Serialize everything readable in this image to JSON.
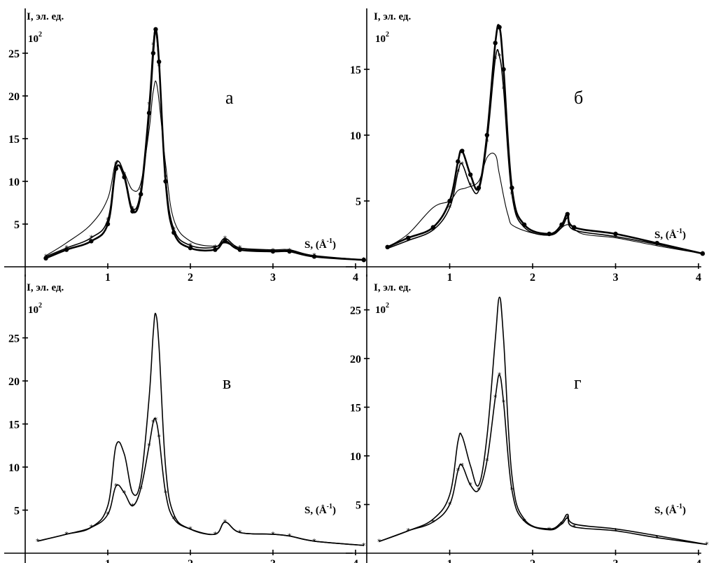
{
  "chart_data": [
    {
      "type": "line",
      "panel_label": "а",
      "ylabel": "I, эл. ед.",
      "y_multiplier": "10",
      "y_multiplier_exp": "2",
      "xlabel_prefix": "S, (Å",
      "xlabel_exp": "-1",
      "xlabel_suffix": ")",
      "xlim": [
        0,
        4.1
      ],
      "ylim": [
        0,
        28
      ],
      "x_ticks": [
        "1",
        "2",
        "3",
        "4"
      ],
      "y_ticks": [
        "5",
        "10",
        "15",
        "20",
        "25"
      ],
      "series": [
        {
          "style": "thick",
          "marker": "diamond",
          "x": [
            0.25,
            0.5,
            0.8,
            1.0,
            1.1,
            1.2,
            1.3,
            1.4,
            1.5,
            1.55,
            1.58,
            1.62,
            1.7,
            1.8,
            2.0,
            2.3,
            2.42,
            2.6,
            3.0,
            3.2,
            3.5,
            4.1
          ],
          "y": [
            1.0,
            2.0,
            3.0,
            5.0,
            11.5,
            10.5,
            6.5,
            8.5,
            18.0,
            25.0,
            27.8,
            24.0,
            10.0,
            4.0,
            2.2,
            2.0,
            3.0,
            2.0,
            1.8,
            1.8,
            1.2,
            0.8
          ]
        },
        {
          "style": "medium",
          "marker": "asterisk",
          "x": [
            0.25,
            0.5,
            0.8,
            1.0,
            1.1,
            1.2,
            1.3,
            1.4,
            1.5,
            1.55,
            1.58,
            1.62,
            1.7,
            1.8,
            2.0,
            2.3,
            2.42,
            2.6,
            3.0,
            3.2,
            3.5,
            4.1
          ],
          "y": [
            1.2,
            2.2,
            3.4,
            5.5,
            12.0,
            10.8,
            6.8,
            9.0,
            19.0,
            26.0,
            27.5,
            23.5,
            10.5,
            4.4,
            2.5,
            2.3,
            3.3,
            2.2,
            1.9,
            1.9,
            1.3,
            0.8
          ]
        },
        {
          "style": "thin",
          "marker": "none",
          "x": [
            0.25,
            0.5,
            0.8,
            1.0,
            1.1,
            1.2,
            1.3,
            1.4,
            1.5,
            1.55,
            1.6,
            1.7,
            1.8,
            2.0,
            2.3,
            2.42,
            2.6,
            3.0,
            3.2,
            3.5,
            4.1
          ],
          "y": [
            1.3,
            2.8,
            5.0,
            8.0,
            12.3,
            11.0,
            9.0,
            9.8,
            16.0,
            20.5,
            21.0,
            12.0,
            5.5,
            3.0,
            2.4,
            2.8,
            2.2,
            2.0,
            2.0,
            1.3,
            0.8
          ]
        }
      ]
    },
    {
      "type": "line",
      "panel_label": "б",
      "ylabel": "I, эл. ед.",
      "y_multiplier": "10",
      "y_multiplier_exp": "2",
      "xlabel_prefix": "S, (Å",
      "xlabel_exp": "-1",
      "xlabel_suffix": ")",
      "xlim": [
        0,
        4.1
      ],
      "ylim": [
        0,
        18.5
      ],
      "x_ticks": [
        "1",
        "2",
        "3",
        "4"
      ],
      "y_ticks": [
        "5",
        "10",
        "15"
      ],
      "series": [
        {
          "style": "thick",
          "marker": "diamond",
          "x": [
            0.25,
            0.5,
            0.8,
            1.0,
            1.1,
            1.15,
            1.25,
            1.35,
            1.45,
            1.55,
            1.6,
            1.65,
            1.75,
            1.9,
            2.2,
            2.35,
            2.42,
            2.5,
            3.0,
            3.5,
            4.05
          ],
          "y": [
            1.5,
            2.2,
            3.0,
            5.0,
            8.0,
            8.8,
            7.0,
            6.0,
            10.0,
            17.0,
            18.2,
            15.0,
            6.0,
            3.2,
            2.5,
            3.2,
            4.0,
            3.0,
            2.5,
            1.8,
            1.0
          ]
        },
        {
          "style": "medium",
          "marker": "asterisk",
          "x": [
            0.25,
            0.5,
            0.8,
            1.0,
            1.1,
            1.15,
            1.25,
            1.35,
            1.45,
            1.55,
            1.6,
            1.65,
            1.75,
            1.9,
            2.2,
            2.35,
            2.42,
            2.5,
            3.0,
            3.5,
            4.05
          ],
          "y": [
            1.4,
            2.0,
            2.8,
            4.5,
            7.2,
            7.8,
            6.2,
            5.8,
            9.5,
            15.8,
            16.0,
            13.5,
            5.5,
            3.0,
            2.4,
            3.0,
            3.7,
            2.8,
            2.3,
            1.7,
            1.0
          ]
        },
        {
          "style": "thin",
          "marker": "none",
          "x": [
            0.25,
            0.5,
            0.8,
            1.0,
            1.1,
            1.2,
            1.35,
            1.45,
            1.55,
            1.6,
            1.7,
            1.8,
            2.2,
            2.42,
            2.6,
            3.0,
            3.5,
            4.05
          ],
          "y": [
            1.5,
            2.5,
            4.5,
            5.0,
            5.8,
            6.0,
            6.5,
            8.3,
            8.5,
            7.0,
            4.0,
            3.0,
            2.4,
            3.2,
            2.5,
            2.2,
            1.6,
            1.0
          ]
        }
      ]
    },
    {
      "type": "line",
      "panel_label": "в",
      "ylabel": "I, эл. ед.",
      "y_multiplier": "10",
      "y_multiplier_exp": "2",
      "xlabel_prefix": "S, (Å",
      "xlabel_exp": "-1",
      "xlabel_suffix": ")",
      "xlim": [
        0,
        4.1
      ],
      "ylim": [
        0,
        28
      ],
      "x_ticks": [
        "1",
        "2",
        "3",
        "4"
      ],
      "y_ticks": [
        "5",
        "10",
        "15",
        "20",
        "25"
      ],
      "series": [
        {
          "style": "medium",
          "marker": "none",
          "x": [
            0.15,
            0.5,
            0.8,
            1.0,
            1.1,
            1.2,
            1.3,
            1.4,
            1.5,
            1.55,
            1.58,
            1.62,
            1.7,
            1.8,
            2.0,
            2.3,
            2.42,
            2.6,
            3.0,
            3.2,
            3.5,
            4.1
          ],
          "y": [
            1.4,
            2.2,
            3.0,
            5.5,
            12.5,
            11.5,
            7.0,
            8.5,
            18.0,
            25.5,
            27.8,
            24.0,
            10.0,
            4.5,
            2.8,
            2.2,
            3.6,
            2.4,
            2.2,
            2.0,
            1.4,
            0.9
          ]
        },
        {
          "style": "medium",
          "marker": "asterisk",
          "x": [
            0.15,
            0.5,
            0.8,
            1.0,
            1.1,
            1.2,
            1.3,
            1.4,
            1.5,
            1.55,
            1.58,
            1.62,
            1.7,
            1.8,
            2.0,
            2.3,
            2.42,
            2.6,
            3.0,
            3.2,
            3.5,
            4.1
          ],
          "y": [
            1.4,
            2.2,
            3.0,
            4.5,
            7.8,
            7.0,
            5.5,
            7.5,
            12.5,
            15.2,
            15.5,
            13.5,
            7.0,
            4.0,
            2.8,
            2.2,
            3.6,
            2.4,
            2.2,
            2.0,
            1.4,
            0.9
          ]
        }
      ]
    },
    {
      "type": "line",
      "panel_label": "г",
      "ylabel": "I, эл. ед.",
      "y_multiplier": "10",
      "y_multiplier_exp": "2",
      "xlabel_prefix": "S, (Å",
      "xlabel_exp": "-1",
      "xlabel_suffix": ")",
      "xlim": [
        0,
        4.1
      ],
      "ylim": [
        0,
        27
      ],
      "x_ticks": [
        "1",
        "2",
        "3",
        "4"
      ],
      "y_ticks": [
        "5",
        "10",
        "15",
        "20",
        "25"
      ],
      "series": [
        {
          "style": "medium",
          "marker": "none",
          "x": [
            0.15,
            0.5,
            0.8,
            1.0,
            1.1,
            1.15,
            1.25,
            1.35,
            1.45,
            1.55,
            1.6,
            1.65,
            1.75,
            1.9,
            2.2,
            2.35,
            2.42,
            2.5,
            3.0,
            3.5,
            4.1
          ],
          "y": [
            1.2,
            2.3,
            3.5,
            6.0,
            11.5,
            12.0,
            9.0,
            7.0,
            12.0,
            22.0,
            26.3,
            22.0,
            8.0,
            3.5,
            2.5,
            3.2,
            4.0,
            3.0,
            2.5,
            1.8,
            0.9
          ]
        },
        {
          "style": "medium",
          "marker": "asterisk",
          "x": [
            0.15,
            0.5,
            0.8,
            1.0,
            1.1,
            1.15,
            1.25,
            1.35,
            1.45,
            1.55,
            1.6,
            1.65,
            1.75,
            1.9,
            2.2,
            2.35,
            2.42,
            2.5,
            3.0,
            3.5,
            4.1
          ],
          "y": [
            1.2,
            2.3,
            3.2,
            5.0,
            8.5,
            9.0,
            7.0,
            6.5,
            9.5,
            16.0,
            18.3,
            15.5,
            6.5,
            3.3,
            2.4,
            3.0,
            3.6,
            2.7,
            2.3,
            1.6,
            0.9
          ]
        }
      ]
    }
  ]
}
